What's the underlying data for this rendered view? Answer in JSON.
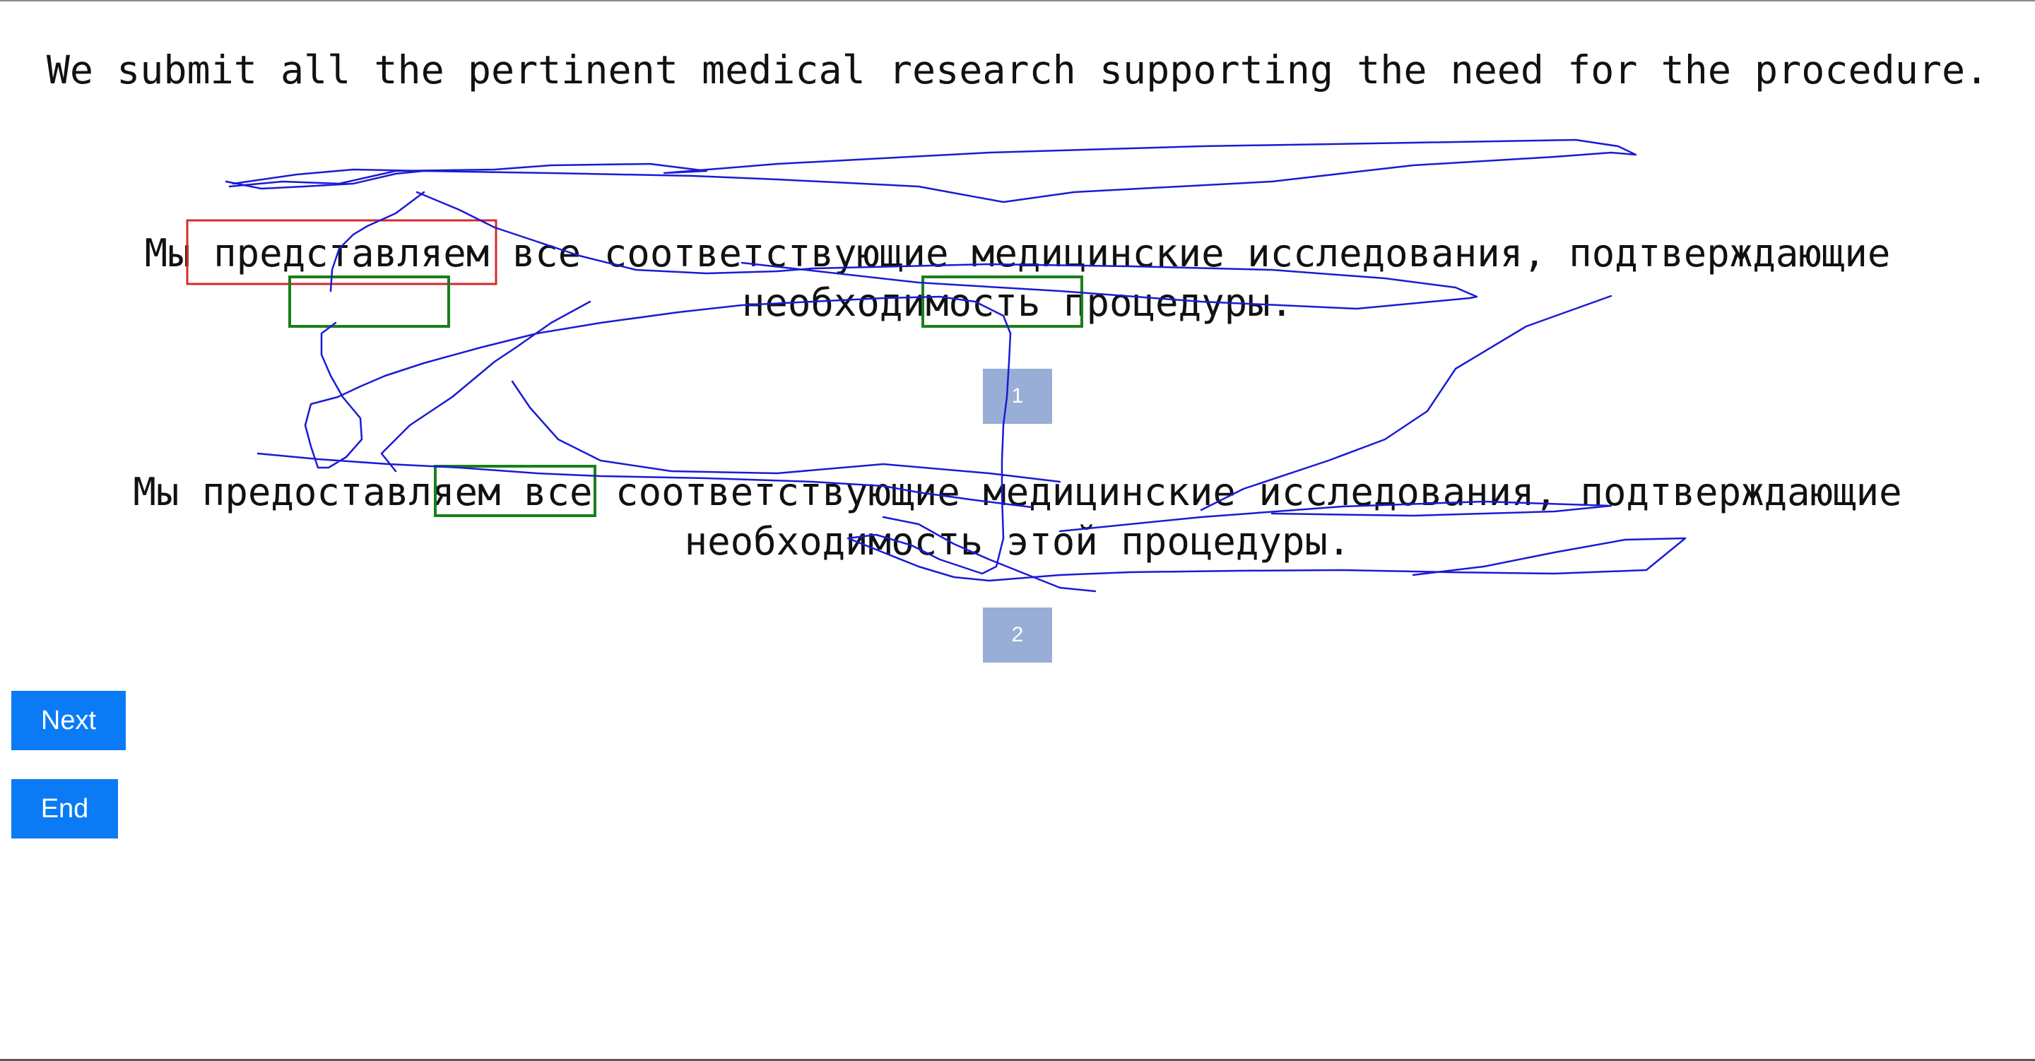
{
  "source_sentence": "We submit all the pertinent medical research supporting the need for the procedure.",
  "translations": [
    {
      "line1": "Мы представляем все соответствующие медицинские исследования, подтверждающие",
      "line2": "необходимость процедуры.",
      "badge": "1"
    },
    {
      "line1": "Мы предоставляем все соответствующие медицинские исследования, подтверждающие",
      "line2": "необходимость этой процедуры.",
      "badge": "2"
    }
  ],
  "buttons": {
    "next_label": "Next",
    "end_label": "End"
  },
  "colors": {
    "button_bg": "#0a7bf5",
    "badge_bg": "#98aed6",
    "error_box": "#d62b2b",
    "match_box": "#1a7f1a",
    "gaze_trace": "#1a1ad6"
  }
}
